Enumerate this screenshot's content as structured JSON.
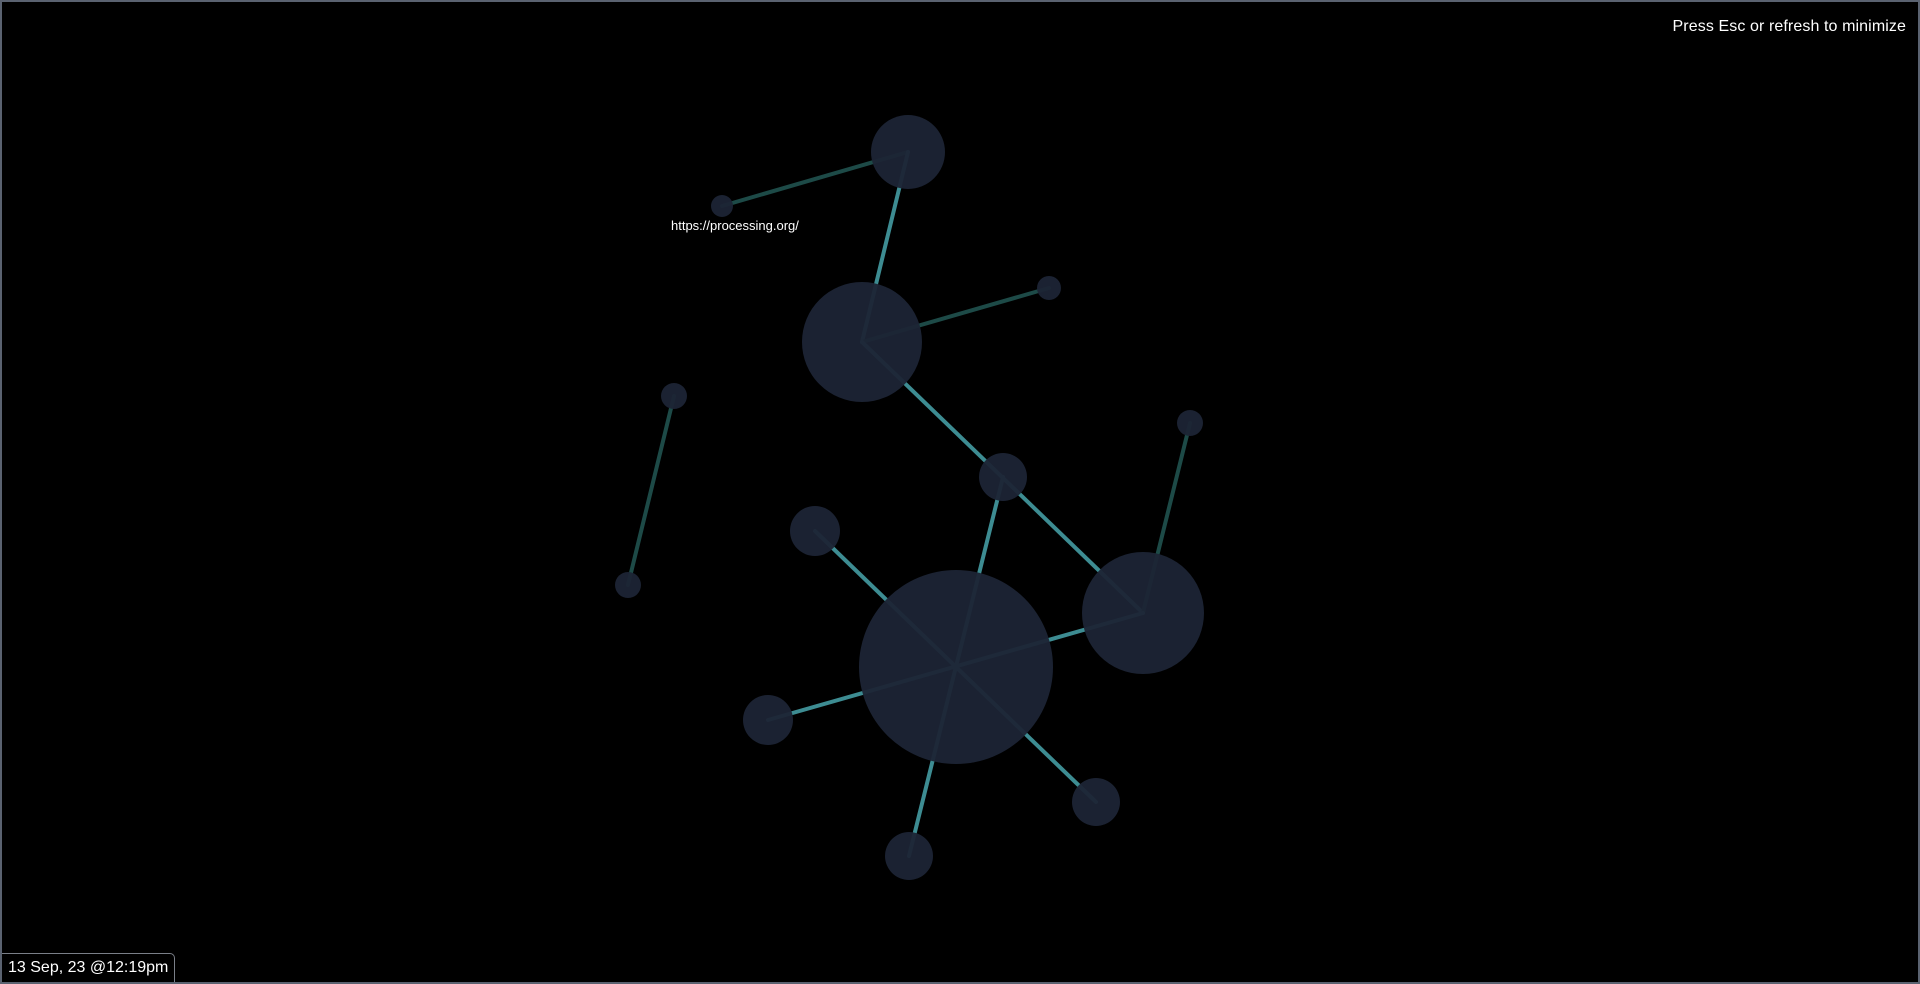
{
  "hint": {
    "text": "Press Esc or refresh to minimize"
  },
  "footer": {
    "timestamp": "13 Sep, 23 @12:19pm"
  },
  "graph": {
    "colors": {
      "node_fill": "#1c2435",
      "edge_bright": "#3d8c92",
      "edge_dim": "#1d4a47",
      "label": "#ffffff"
    },
    "label_text": "https://processing.org/"
  }
}
